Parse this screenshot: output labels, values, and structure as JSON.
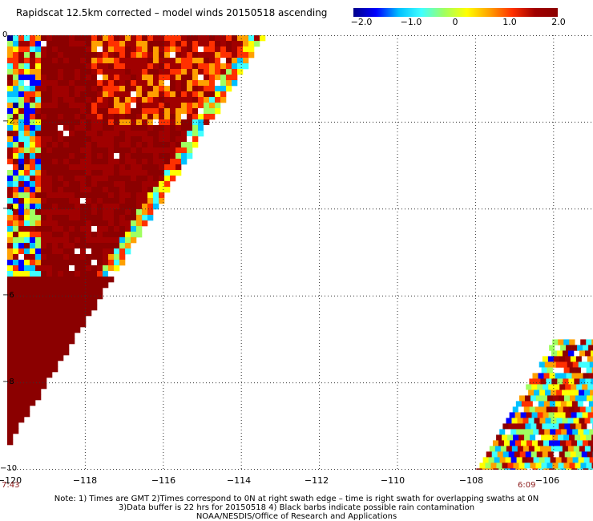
{
  "title": "Rapidscat 12.5km corrected – model winds 20150518 ascending",
  "colorbar": {
    "min": -2.0,
    "max": 2.0,
    "labels": [
      "−2.0",
      "−1.0",
      "0",
      "1.0",
      "2.0"
    ],
    "colors": [
      "#00008b",
      "#0000ff",
      "#00c0ff",
      "#40ffff",
      "#a0ff60",
      "#ffff00",
      "#ffa000",
      "#ff3000",
      "#a00000",
      "#8b0000"
    ]
  },
  "map": {
    "lon_range": [
      -120,
      -104.8
    ],
    "lat_range": [
      -10,
      0
    ],
    "grid": "dotted",
    "background": "#ffffff",
    "x_labels": [
      "−120",
      "−118",
      "−116",
      "−114",
      "−112",
      "−110",
      "−108",
      "−106"
    ],
    "y_labels": [
      "0",
      "−2",
      "−4",
      "−6",
      "−8",
      "−10"
    ],
    "swath_times": [
      "7:43",
      "6:09"
    ],
    "swaths": [
      {
        "name": "swath-west",
        "lon_left": -120,
        "lat_top": 0,
        "right_edge_top_lon": -113.5,
        "diagonal_lat_bottom": -9.3
      },
      {
        "name": "swath-east",
        "lon_right": -104.8,
        "lat_bottom": -10,
        "diagonal_lon_bottom": -108.0,
        "diagonal_lat_top": -7.0
      }
    ]
  },
  "notes": [
    "Note: 1) Times are GMT 2)Times correspond to 0N at right swath edge – time is right swath for overlapping swaths at 0N",
    "3)Data buffer is 22 hrs for 20150518 4) Black barbs indicate possible rain contamination",
    "NOAA/NESDIS/Office of Research and Applications"
  ]
}
